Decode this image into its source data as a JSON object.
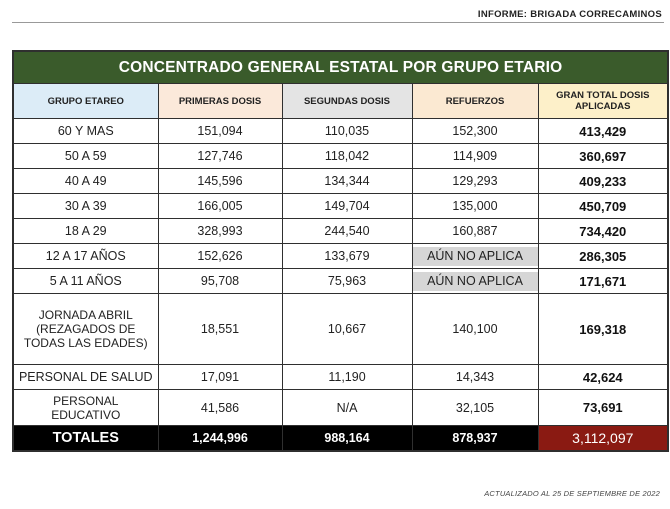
{
  "header": {
    "report_label": "INFORME: BRIGADA CORRECAMINOS"
  },
  "table": {
    "title": "CONCENTRADO GENERAL ESTATAL POR GRUPO ETARIO",
    "columns": {
      "group": "GRUPO ETAREO",
      "first": "PRIMERAS DOSIS",
      "second": "SEGUNDAS DOSIS",
      "boost": "REFUERZOS",
      "total_line1": "GRAN TOTAL DOSIS",
      "total_line2": "APLICADAS"
    },
    "rows": [
      {
        "group": "60 Y MAS",
        "first": "151,094",
        "second": "110,035",
        "boost": "152,300",
        "total": "413,429"
      },
      {
        "group": "50 A 59",
        "first": "127,746",
        "second": "118,042",
        "boost": "114,909",
        "total": "360,697"
      },
      {
        "group": "40 A 49",
        "first": "145,596",
        "second": "134,344",
        "boost": "129,293",
        "total": "409,233"
      },
      {
        "group": "30 A 39",
        "first": "166,005",
        "second": "149,704",
        "boost": "135,000",
        "total": "450,709"
      },
      {
        "group": "18 A 29",
        "first": "328,993",
        "second": "244,540",
        "boost": "160,887",
        "total": "734,420"
      },
      {
        "group": "12 A 17 AÑOS",
        "first": "152,626",
        "second": "133,679",
        "boost": "AÚN NO APLICA",
        "total": "286,305"
      },
      {
        "group": "5 A 11 AÑOS",
        "first": "95,708",
        "second": "75,963",
        "boost": "AÚN NO APLICA",
        "total": "171,671"
      },
      {
        "group_lines": [
          "JORNADA ABRIL",
          "(REZAGADOS DE",
          "TODAS LAS EDADES)"
        ],
        "first": "18,551",
        "second": "10,667",
        "boost": "140,100",
        "total": "169,318"
      },
      {
        "group": "PERSONAL DE SALUD",
        "first": "17,091",
        "second": "11,190",
        "boost": "14,343",
        "total": "42,624"
      },
      {
        "group_lines": [
          "PERSONAL",
          "EDUCATIVO"
        ],
        "first": "41,586",
        "second": "N/A",
        "boost": "32,105",
        "total": "73,691"
      }
    ],
    "totals": {
      "label": "TOTALES",
      "first": "1,244,996",
      "second": "988,164",
      "boost": "878,937",
      "total": "3,112,097"
    }
  },
  "footer": {
    "updated": "ACTUALIZADO AL 25 DE SEPTIEMBRE DE 2022"
  },
  "colors": {
    "title_bg": "#3a5b2b",
    "group_header_bg": "#dcecf7",
    "first_header_bg": "#fbe9da",
    "second_header_bg": "#e4e4e4",
    "boost_header_bg": "#fbe9d2",
    "total_header_bg": "#fdf0c9",
    "not_applicable_bg": "#d6d6d6",
    "totals_row_bg": "#000000",
    "grand_total_bg": "#8a1a12"
  }
}
